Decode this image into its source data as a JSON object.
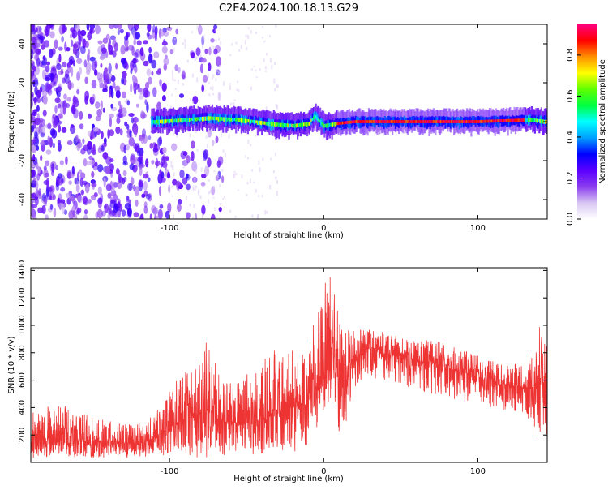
{
  "figure": {
    "title": "C2E4.2024.100.18.13.G29"
  },
  "colors": {
    "snr_line": "#ee3333",
    "colormap": [
      "#ffffff",
      "#d8c6f3",
      "#8a3cf0",
      "#5a00ff",
      "#0000ff",
      "#00a0ff",
      "#00ffff",
      "#00ff40",
      "#60ff00",
      "#ffff00",
      "#ff9000",
      "#ff0000",
      "#ff0080"
    ]
  },
  "chart_data": [
    {
      "type": "heatmap",
      "title": "",
      "xlabel": "Height of straight line (km)",
      "ylabel": "Frequency (Hz)",
      "xlim": [
        -190,
        145
      ],
      "ylim": [
        -50,
        50
      ],
      "xticks": [
        -100,
        0,
        100
      ],
      "yticks": [
        -40,
        -20,
        0,
        20,
        40
      ],
      "colorbar": {
        "label": "Normalized spectral amplitude",
        "range": [
          0,
          0.95
        ],
        "ticks": [
          0.0,
          0.2,
          0.4,
          0.6,
          0.8
        ]
      },
      "features": {
        "noise_region_x": [
          -190,
          -100
        ],
        "signal_band_center_hz": [
          [
            -110,
            0
          ],
          [
            -90,
            1
          ],
          [
            -75,
            2
          ],
          [
            -55,
            1
          ],
          [
            -35,
            -1
          ],
          [
            -20,
            -2
          ],
          [
            -10,
            -1
          ],
          [
            -6,
            3
          ],
          [
            0,
            -2
          ],
          [
            8,
            -1
          ],
          [
            20,
            0
          ],
          [
            60,
            0
          ],
          [
            100,
            0
          ],
          [
            135,
            1
          ],
          [
            145,
            0
          ]
        ],
        "signal_band_halfwidth_hz": 5
      }
    },
    {
      "type": "line",
      "title": "",
      "xlabel": "Height of straight line (km)",
      "ylabel": "SNR (10 * v/v)",
      "xlim": [
        -190,
        145
      ],
      "ylim": [
        0,
        1420
      ],
      "xticks": [
        -100,
        0,
        100
      ],
      "yticks": [
        200,
        400,
        600,
        800,
        1000,
        1200,
        1400
      ],
      "series": [
        {
          "name": "",
          "envelope": {
            "x": [
              -190,
              -170,
              -150,
              -130,
              -115,
              -105,
              -95,
              -85,
              -75,
              -65,
              -55,
              -45,
              -35,
              -25,
              -15,
              -8,
              -2,
              2,
              5,
              8,
              12,
              20,
              30,
              40,
              55,
              70,
              85,
              100,
              115,
              130,
              140,
              145
            ],
            "mean": [
              150,
              160,
              150,
              140,
              150,
              220,
              280,
              330,
              380,
              320,
              280,
              300,
              340,
              380,
              420,
              520,
              600,
              650,
              700,
              650,
              620,
              780,
              830,
              800,
              760,
              720,
              680,
              620,
              580,
              540,
              550,
              560
            ],
            "upper": [
              400,
              420,
              330,
              280,
              300,
              420,
              620,
              700,
              900,
              600,
              580,
              700,
              800,
              850,
              800,
              1000,
              1150,
              1400,
              1350,
              1200,
              1000,
              960,
              980,
              950,
              900,
              900,
              840,
              780,
              720,
              720,
              1020,
              880
            ],
            "lower": [
              30,
              40,
              30,
              30,
              40,
              50,
              60,
              40,
              20,
              40,
              40,
              60,
              60,
              60,
              80,
              150,
              250,
              350,
              400,
              300,
              150,
              550,
              600,
              600,
              550,
              500,
              460,
              420,
              380,
              350,
              150,
              200
            ]
          }
        }
      ]
    }
  ]
}
